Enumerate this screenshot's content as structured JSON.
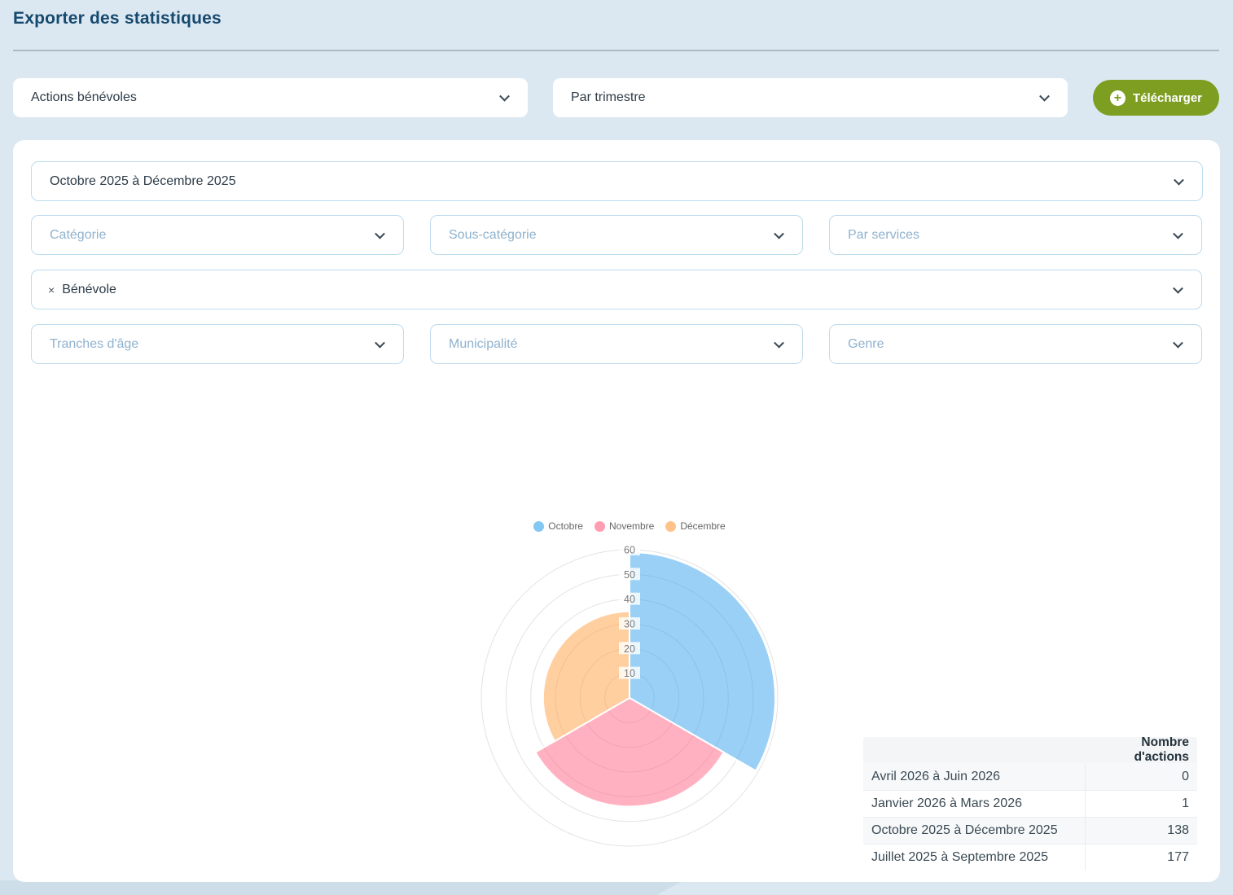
{
  "page": {
    "title": "Exporter des statistiques",
    "background_color": "#dce8f1",
    "title_color": "#16496f"
  },
  "toolbar": {
    "type_select": {
      "value": "Actions bénévoles"
    },
    "granularity_select": {
      "value": "Par trimestre"
    },
    "download_button": {
      "label": "Télécharger",
      "color": "#7d9e20",
      "icon": "plus-circle"
    }
  },
  "filters": {
    "date_range_select": {
      "value": "Octobre 2025 à Décembre 2025"
    },
    "category_select": {
      "placeholder": "Catégorie"
    },
    "subcategory_select": {
      "placeholder": "Sous-catégorie"
    },
    "services_select": {
      "placeholder": "Par services"
    },
    "type_tag_select": {
      "tag": {
        "remove_glyph": "×",
        "label": "Bénévole"
      }
    },
    "age_select": {
      "placeholder": "Tranches d'âge"
    },
    "municipality_select": {
      "placeholder": "Municipalité"
    },
    "gender_select": {
      "placeholder": "Genre"
    }
  },
  "chart_data": {
    "type": "polarArea",
    "categories": [
      "Octobre",
      "Novembre",
      "Décembre"
    ],
    "values": [
      59,
      44,
      35
    ],
    "colors": [
      "rgba(54,162,235,0.5)",
      "rgba(255,99,132,0.5)",
      "rgba(255,159,64,0.5)"
    ],
    "legend_colors": [
      "#83c7f3",
      "#ff9eb3",
      "#ffc389"
    ],
    "rlim": [
      0,
      60
    ],
    "ticks": [
      10,
      20,
      30,
      40,
      50,
      60
    ],
    "start_angle_deg": -90,
    "direction": "clockwise",
    "grid": true,
    "grid_color": "#e3e3e3",
    "tick_color": "#7a7a7a",
    "legend_position": "top"
  },
  "table": {
    "headers": [
      "",
      "Nombre d'actions"
    ],
    "rows": [
      {
        "label": "Avril 2026 à Juin 2026",
        "value": "0"
      },
      {
        "label": "Janvier 2026 à Mars 2026",
        "value": "1"
      },
      {
        "label": "Octobre 2025 à Décembre 2025",
        "value": "138"
      },
      {
        "label": "Juillet 2025 à Septembre 2025",
        "value": "177"
      }
    ]
  }
}
